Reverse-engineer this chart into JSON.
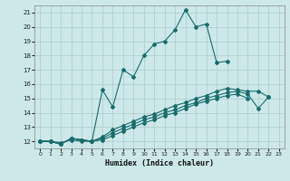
{
  "xlabel": "Humidex (Indice chaleur)",
  "bg_color": "#cce8e8",
  "line_color": "#1a6b6b",
  "grid_color": "#aacccc",
  "xlim": [
    -0.5,
    23.5
  ],
  "ylim": [
    11.5,
    21.5
  ],
  "xticks": [
    0,
    1,
    2,
    3,
    4,
    5,
    6,
    7,
    8,
    9,
    10,
    11,
    12,
    13,
    14,
    15,
    16,
    17,
    18,
    19,
    20,
    21,
    22,
    23
  ],
  "yticks": [
    12,
    13,
    14,
    15,
    16,
    17,
    18,
    19,
    20,
    21
  ],
  "s1_x": [
    0,
    1,
    2,
    3,
    4,
    5,
    6,
    7,
    8,
    9,
    10,
    11,
    12,
    13,
    14,
    15,
    16,
    17,
    18
  ],
  "s1_y": [
    12.0,
    12.0,
    11.8,
    12.2,
    12.1,
    12.0,
    15.6,
    14.4,
    17.0,
    16.5,
    18.0,
    18.8,
    19.0,
    19.8,
    21.2,
    20.0,
    20.2,
    17.5,
    17.6
  ],
  "s2_x": [
    0,
    1,
    2,
    3,
    4,
    5,
    6,
    7,
    8,
    9,
    10,
    11,
    12,
    13,
    14,
    15,
    16,
    17,
    18,
    19,
    20,
    21,
    22
  ],
  "s2_y": [
    12.0,
    12.0,
    11.8,
    12.2,
    12.1,
    12.0,
    12.3,
    12.8,
    13.1,
    13.4,
    13.7,
    13.9,
    14.2,
    14.5,
    14.7,
    15.0,
    15.2,
    15.5,
    15.7,
    15.6,
    15.5,
    15.5,
    15.1
  ],
  "s3_x": [
    0,
    1,
    2,
    3,
    4,
    5,
    6,
    7,
    8,
    9,
    10,
    11,
    12,
    13,
    14,
    15,
    16,
    17,
    18,
    19,
    20,
    21,
    22
  ],
  "s3_y": [
    12.0,
    12.0,
    11.8,
    12.2,
    12.1,
    12.0,
    12.2,
    12.6,
    12.9,
    13.2,
    13.5,
    13.7,
    14.0,
    14.2,
    14.5,
    14.7,
    15.0,
    15.2,
    15.4,
    15.5,
    15.3,
    14.3,
    15.1
  ],
  "s4_x": [
    0,
    1,
    2,
    3,
    4,
    5,
    6,
    7,
    8,
    9,
    10,
    11,
    12,
    13,
    14,
    15,
    16,
    17,
    18,
    19,
    20
  ],
  "s4_y": [
    12.0,
    12.0,
    11.9,
    12.1,
    12.0,
    12.0,
    12.1,
    12.4,
    12.7,
    13.0,
    13.3,
    13.5,
    13.8,
    14.0,
    14.3,
    14.6,
    14.8,
    15.0,
    15.2,
    15.3,
    15.0
  ]
}
